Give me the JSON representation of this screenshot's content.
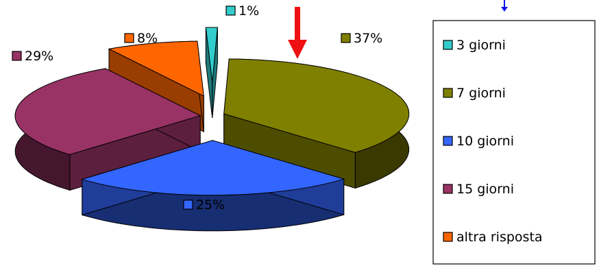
{
  "chart_data": {
    "type": "pie",
    "style": "3d-exploded",
    "categories": [
      "3 giorni",
      "7 giorni",
      "10 giorni",
      "15 giorni",
      "altra risposta"
    ],
    "values": [
      1,
      37,
      25,
      29,
      8
    ],
    "value_labels": [
      "1%",
      "37%",
      "25%",
      "29%",
      "8%"
    ],
    "colors": [
      "#33CCCC",
      "#808000",
      "#3366FF",
      "#993366",
      "#FF6600"
    ],
    "legend": "right",
    "annotations": [
      "red-arrow-pointing-at-37%-slice",
      "blue-arrow-pointing-at-legend"
    ]
  }
}
